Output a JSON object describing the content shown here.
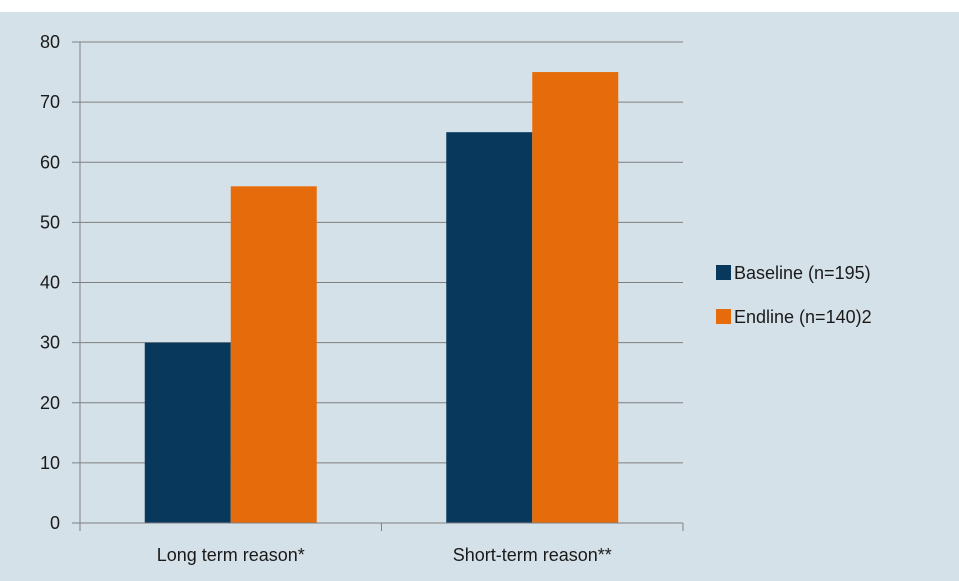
{
  "chart_data": {
    "type": "bar",
    "categories": [
      "Long term reason*",
      "Short-term reason**"
    ],
    "series": [
      {
        "name": "Baseline (n=195)",
        "values": [
          30,
          65
        ],
        "color": "#08385c"
      },
      {
        "name": "Endline (n=140)2",
        "values": [
          56,
          75
        ],
        "color": "#e66c0b"
      }
    ],
    "ylim": [
      0,
      80
    ],
    "yticks": [
      0,
      10,
      20,
      30,
      40,
      50,
      60,
      70,
      80
    ],
    "grid": true,
    "legend_position": "right",
    "background_color": "#d5e1e9",
    "gridline_color": "#7f7f7f"
  }
}
